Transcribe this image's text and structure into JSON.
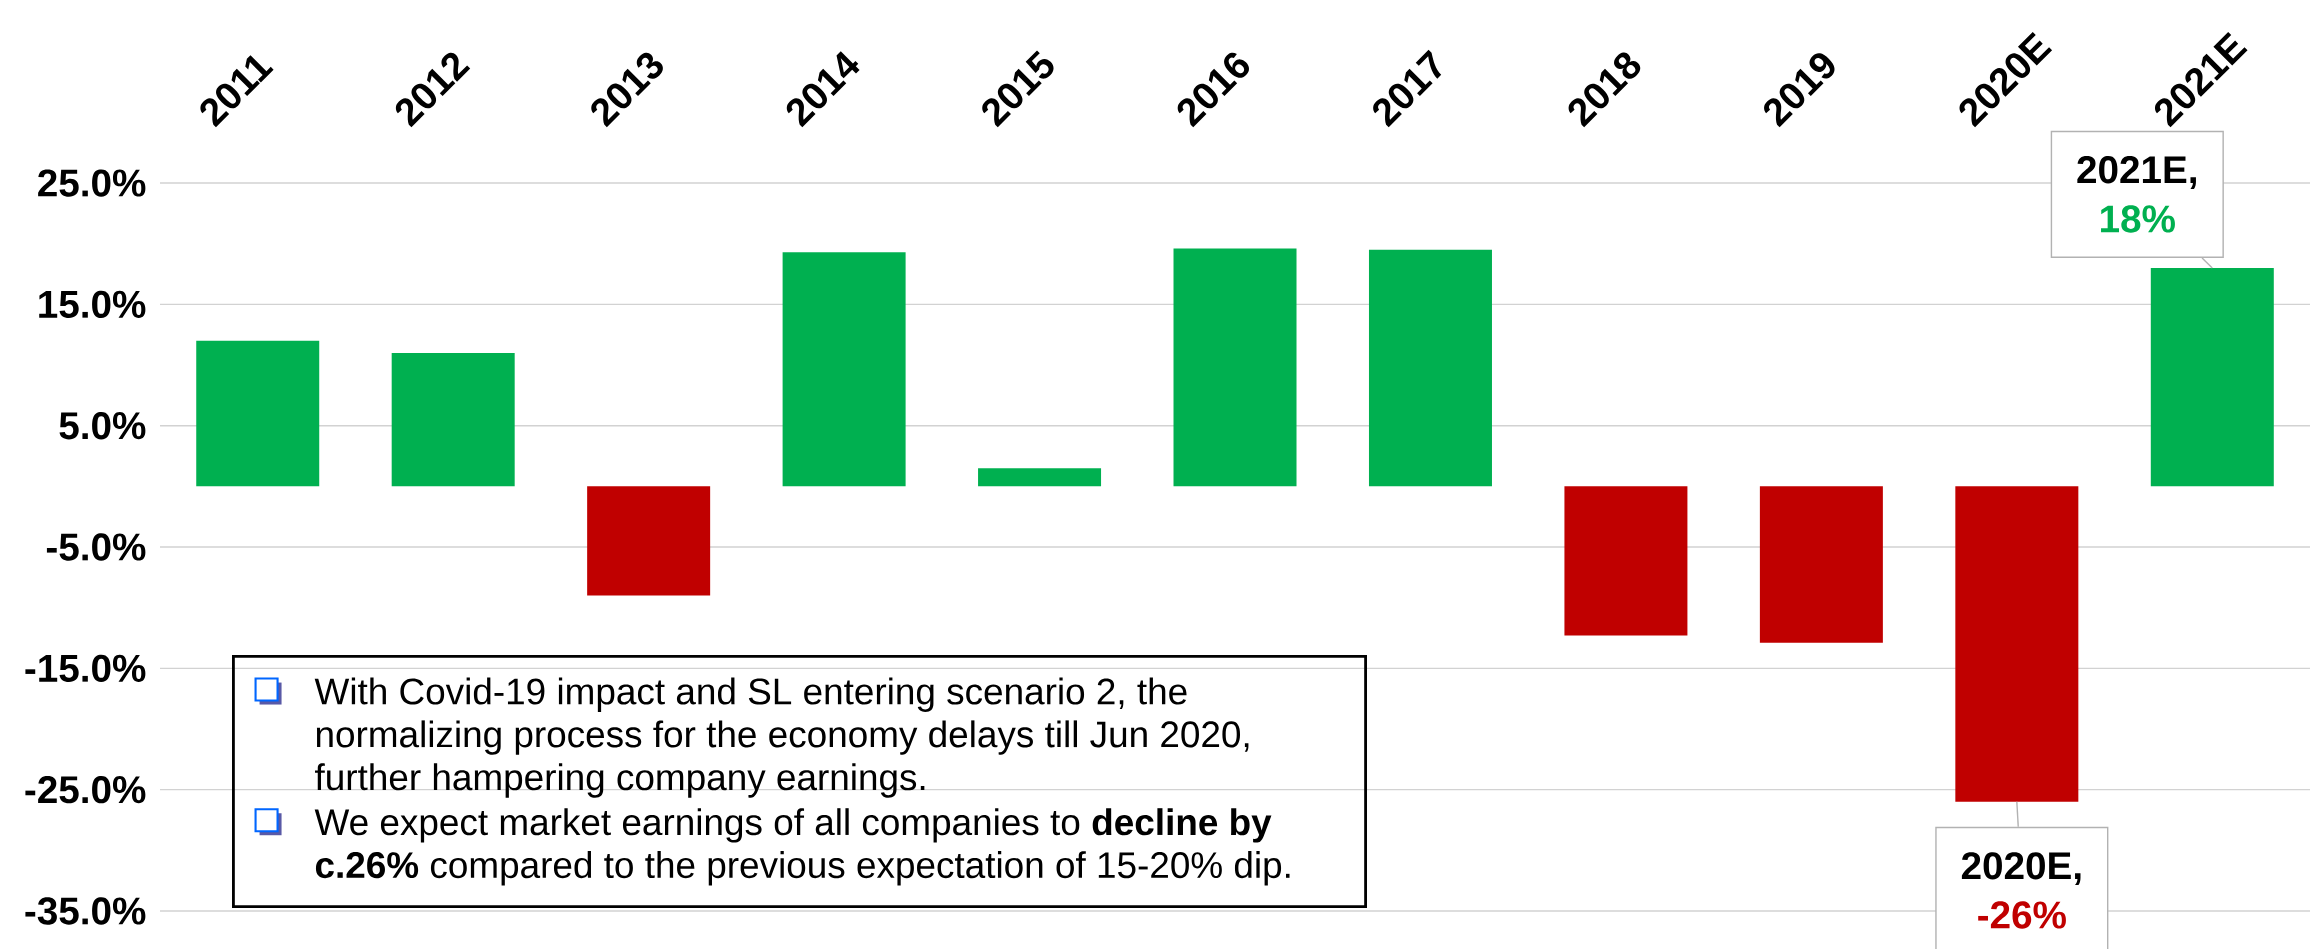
{
  "chart_data": {
    "type": "bar",
    "categories": [
      "2011",
      "2012",
      "2013",
      "2014",
      "2015",
      "2016",
      "2017",
      "2018",
      "2019",
      "2020E",
      "2021E"
    ],
    "values": [
      12.0,
      11.0,
      -9.0,
      19.3,
      1.5,
      19.6,
      19.5,
      -12.3,
      -12.9,
      -26,
      18
    ],
    "colors": [
      "#00b050",
      "#00b050",
      "#c00000",
      "#00b050",
      "#00b050",
      "#00b050",
      "#00b050",
      "#c00000",
      "#c00000",
      "#c00000",
      "#00b050"
    ],
    "value_labels": [
      null,
      null,
      null,
      null,
      null,
      null,
      null,
      null,
      null,
      "-26%",
      "18%"
    ],
    "ylim": [
      -35,
      25
    ],
    "yticks": [
      {
        "value": -35,
        "label": "-35.0%"
      },
      {
        "value": -25,
        "label": "-25.0%"
      },
      {
        "value": -15,
        "label": "-15.0%"
      },
      {
        "value": -5,
        "label": "-5.0%"
      },
      {
        "value": 5,
        "label": "5.0%"
      },
      {
        "value": 15,
        "label": "15.0%"
      },
      {
        "value": 25,
        "label": "25.0%"
      }
    ],
    "grid": "y",
    "annotations": [
      "2020E,",
      "2021E,",
      "With Covid-19 impact and SL entering scenario 2, the normalizing process for the economy delays till Jun 2020, further hampering company earnings.",
      "We expect market earnings of all companies to **decline by c.26%** compared to the previous expectation of 15-20% dip."
    ]
  }
}
